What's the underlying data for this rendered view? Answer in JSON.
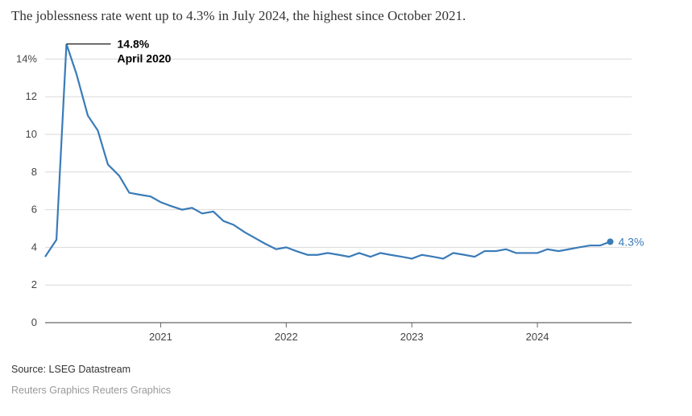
{
  "title": "The joblessness rate went up to 4.3% in July 2024, the highest since October 2021.",
  "source": "Source: LSEG Datastream",
  "credit": "Reuters Graphics Reuters Graphics",
  "chart": {
    "type": "line",
    "background_color": "#ffffff",
    "grid_color": "#d9d9d9",
    "zero_line_color": "#666666",
    "line_color": "#3a7bb8",
    "line_width": 2.2,
    "endpoint_marker_color": "#3a7bb8",
    "endpoint_marker_radius": 4,
    "y": {
      "min": 0,
      "max": 15,
      "ticks": [
        0,
        2,
        4,
        6,
        8,
        10,
        12,
        14
      ],
      "tick_labels": [
        "0",
        "2",
        "4",
        "6",
        "8",
        "10",
        "12",
        "14%"
      ],
      "label_fontsize": 13,
      "label_color": "#444444"
    },
    "x": {
      "domain_start": 2020.08,
      "domain_end": 2024.75,
      "ticks": [
        2021,
        2022,
        2023,
        2024
      ],
      "tick_labels": [
        "2021",
        "2022",
        "2023",
        "2024"
      ],
      "label_fontsize": 13,
      "label_color": "#444444"
    },
    "series": {
      "x": [
        2020.08,
        2020.17,
        2020.25,
        2020.33,
        2020.42,
        2020.5,
        2020.58,
        2020.67,
        2020.75,
        2020.83,
        2020.92,
        2021.0,
        2021.08,
        2021.17,
        2021.25,
        2021.33,
        2021.42,
        2021.5,
        2021.58,
        2021.67,
        2021.75,
        2021.83,
        2021.92,
        2022.0,
        2022.08,
        2022.17,
        2022.25,
        2022.33,
        2022.42,
        2022.5,
        2022.58,
        2022.67,
        2022.75,
        2022.83,
        2022.92,
        2023.0,
        2023.08,
        2023.17,
        2023.25,
        2023.33,
        2023.42,
        2023.5,
        2023.58,
        2023.67,
        2023.75,
        2023.83,
        2023.92,
        2024.0,
        2024.08,
        2024.17,
        2024.25,
        2024.33,
        2024.42,
        2024.5,
        2024.58
      ],
      "y": [
        3.5,
        4.4,
        14.8,
        13.2,
        11.0,
        10.2,
        8.4,
        7.8,
        6.9,
        6.8,
        6.7,
        6.4,
        6.2,
        6.0,
        6.1,
        5.8,
        5.9,
        5.4,
        5.2,
        4.8,
        4.5,
        4.2,
        3.9,
        4.0,
        3.8,
        3.6,
        3.6,
        3.7,
        3.6,
        3.5,
        3.7,
        3.5,
        3.7,
        3.6,
        3.5,
        3.4,
        3.6,
        3.5,
        3.4,
        3.7,
        3.6,
        3.5,
        3.8,
        3.8,
        3.9,
        3.7,
        3.7,
        3.7,
        3.9,
        3.8,
        3.9,
        4.0,
        4.1,
        4.1,
        4.3
      ]
    },
    "annotation": {
      "peak_value": "14.8%",
      "peak_date": "April 2020",
      "fontsize": 14,
      "leader_color": "#000000"
    },
    "endpoint": {
      "label": "4.3%",
      "fontsize": 14,
      "label_color": "#3a7bb8"
    }
  }
}
